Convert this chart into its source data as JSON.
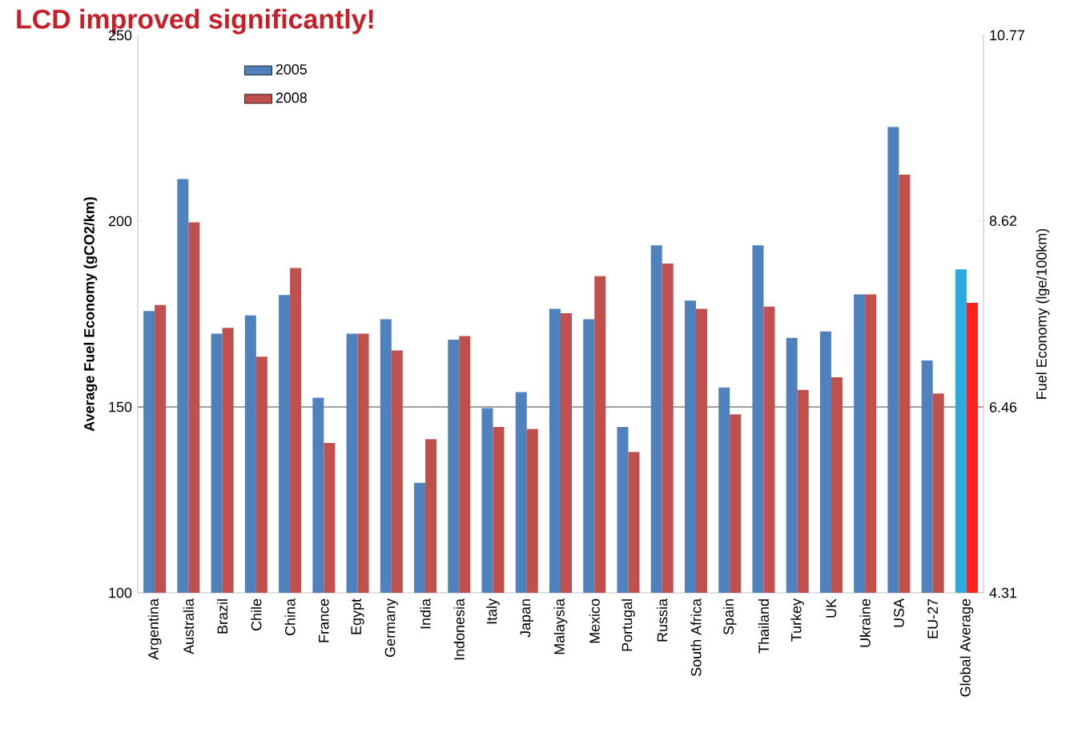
{
  "chart_data": {
    "type": "bar",
    "title": "LCD improved significantly!",
    "ylabel": "Average Fuel Economy (gCO2/km)",
    "y2label": "Fuel Economy (lge/100km)",
    "categories": [
      "Argentina",
      "Australia",
      "Brazil",
      "Chile",
      "China",
      "France",
      "Egypt",
      "Germany",
      "India",
      "Indonesia",
      "Italy",
      "Japan",
      "Malaysia",
      "Mexico",
      "Portugal",
      "Russia",
      "South Africa",
      "Spain",
      "Thailand",
      "Turkey",
      "UK",
      "Ukraine",
      "USA",
      "EU-27",
      "Global Average"
    ],
    "series": [
      {
        "name": "2005",
        "color": "#4f81bd",
        "colors": [
          "#4f81bd",
          "#4f81bd",
          "#4f81bd",
          "#4f81bd",
          "#4f81bd",
          "#4f81bd",
          "#4f81bd",
          "#4f81bd",
          "#4f81bd",
          "#4f81bd",
          "#4f81bd",
          "#4f81bd",
          "#4f81bd",
          "#4f81bd",
          "#4f81bd",
          "#4f81bd",
          "#4f81bd",
          "#4f81bd",
          "#4f81bd",
          "#4f81bd",
          "#4f81bd",
          "#4f81bd",
          "#4f81bd",
          "#4f81bd",
          "#29abe2"
        ],
        "values": [
          175.8,
          211.3,
          169.7,
          174.6,
          180.1,
          152.5,
          169.7,
          173.6,
          129.6,
          168.1,
          149.7,
          154.0,
          176.4,
          173.6,
          144.6,
          193.5,
          178.6,
          155.2,
          193.5,
          168.6,
          170.3,
          180.3,
          225.3,
          162.5,
          187.0
        ]
      },
      {
        "name": "2008",
        "color": "#c0504d",
        "colors": [
          "#c0504d",
          "#c0504d",
          "#c0504d",
          "#c0504d",
          "#c0504d",
          "#c0504d",
          "#c0504d",
          "#c0504d",
          "#c0504d",
          "#c0504d",
          "#c0504d",
          "#c0504d",
          "#c0504d",
          "#c0504d",
          "#c0504d",
          "#c0504d",
          "#c0504d",
          "#c0504d",
          "#c0504d",
          "#c0504d",
          "#c0504d",
          "#c0504d",
          "#c0504d",
          "#c0504d",
          "#ff2020"
        ],
        "values": [
          177.4,
          199.7,
          171.3,
          163.5,
          187.4,
          140.3,
          169.7,
          165.2,
          141.3,
          169.1,
          144.6,
          144.1,
          175.2,
          185.2,
          137.9,
          188.6,
          176.4,
          148.0,
          177.0,
          154.6,
          158.0,
          180.3,
          212.5,
          153.6,
          178.0
        ]
      }
    ],
    "ylim": [
      100,
      250
    ],
    "yticks": [
      100,
      150,
      200,
      250
    ],
    "y2lim": [
      4.31,
      10.77
    ],
    "y2ticks": [
      4.31,
      6.46,
      8.62,
      10.77
    ],
    "ref_lines": [
      {
        "axis": "y",
        "value": 150,
        "color": "#808080"
      }
    ],
    "legend": "top left"
  }
}
